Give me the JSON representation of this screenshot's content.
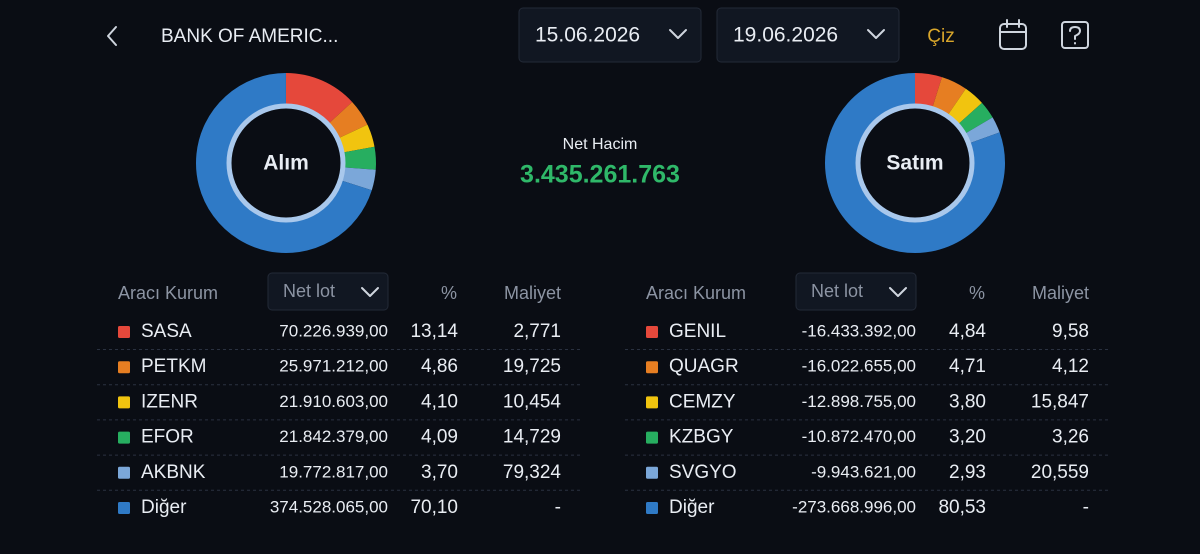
{
  "header": {
    "title": "BANK OF AMERIC...",
    "start_date": "15.06.2026",
    "end_date": "19.06.2026",
    "draw_button": "Çiz"
  },
  "net_volume": {
    "label": "Net Hacim",
    "value": "3.435.261.763"
  },
  "buy": {
    "donut_label": "Alım",
    "columns": [
      "Aracı Kurum",
      "Net lot",
      "%",
      "Maliyet"
    ],
    "rows": [
      {
        "color": "#e5483b",
        "name": "SASA",
        "net_lot": "70.226.939,00",
        "percent": 13.14,
        "percent_label": "13,14",
        "cost": "2,771"
      },
      {
        "color": "#e67e22",
        "name": "PETKM",
        "net_lot": "25.971.212,00",
        "percent": 4.86,
        "percent_label": "4,86",
        "cost": "19,725"
      },
      {
        "color": "#f1c40f",
        "name": "IZENR",
        "net_lot": "21.910.603,00",
        "percent": 4.1,
        "percent_label": "4,10",
        "cost": "10,454"
      },
      {
        "color": "#27ae60",
        "name": "EFOR",
        "net_lot": "21.842.379,00",
        "percent": 4.09,
        "percent_label": "4,09",
        "cost": "14,729"
      },
      {
        "color": "#7ba7d9",
        "name": "AKBNK",
        "net_lot": "19.772.817,00",
        "percent": 3.7,
        "percent_label": "3,70",
        "cost": "79,324"
      },
      {
        "color": "#2f7ac6",
        "name": "Diğer",
        "net_lot": "374.528.065,00",
        "percent": 70.1,
        "percent_label": "70,10",
        "cost": "-"
      }
    ]
  },
  "sell": {
    "donut_label": "Satım",
    "columns": [
      "Aracı Kurum",
      "Net lot",
      "%",
      "Maliyet"
    ],
    "rows": [
      {
        "color": "#e5483b",
        "name": "GENIL",
        "net_lot": "-16.433.392,00",
        "percent": 4.84,
        "percent_label": "4,84",
        "cost": "9,58"
      },
      {
        "color": "#e67e22",
        "name": "QUAGR",
        "net_lot": "-16.022.655,00",
        "percent": 4.71,
        "percent_label": "4,71",
        "cost": "4,12"
      },
      {
        "color": "#f1c40f",
        "name": "CEMZY",
        "net_lot": "-12.898.755,00",
        "percent": 3.8,
        "percent_label": "3,80",
        "cost": "15,847"
      },
      {
        "color": "#27ae60",
        "name": "KZBGY",
        "net_lot": "-10.872.470,00",
        "percent": 3.2,
        "percent_label": "3,20",
        "cost": "3,26"
      },
      {
        "color": "#7ba7d9",
        "name": "SVGYO",
        "net_lot": "-9.943.621,00",
        "percent": 2.93,
        "percent_label": "2,93",
        "cost": "20,559"
      },
      {
        "color": "#2f7ac6",
        "name": "Diğer",
        "net_lot": "-273.668.996,00",
        "percent": 80.53,
        "percent_label": "80,53",
        "cost": "-"
      }
    ]
  }
}
